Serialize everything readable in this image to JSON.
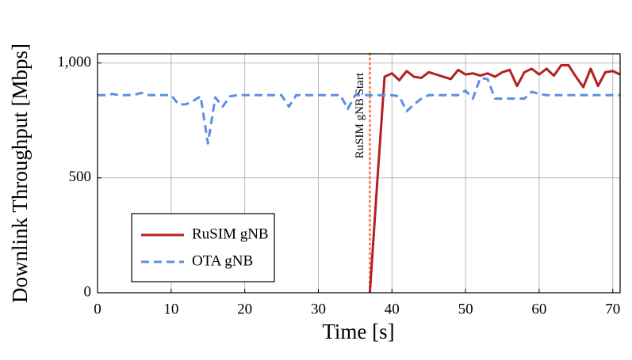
{
  "chart_data": {
    "type": "line",
    "xlabel": "Time [s]",
    "ylabel": "Downlink Throughput [Mbps]",
    "x": [
      0,
      1,
      2,
      3,
      4,
      5,
      6,
      7,
      8,
      9,
      10,
      11,
      12,
      13,
      14,
      15,
      16,
      17,
      18,
      19,
      20,
      21,
      22,
      23,
      24,
      25,
      26,
      27,
      28,
      29,
      30,
      31,
      32,
      33,
      34,
      35,
      36,
      37,
      38,
      39,
      40,
      41,
      42,
      43,
      44,
      45,
      46,
      47,
      48,
      49,
      50,
      51,
      52,
      53,
      54,
      55,
      56,
      57,
      58,
      59,
      60,
      61,
      62,
      63,
      64,
      65,
      66,
      67,
      68,
      69,
      70,
      71
    ],
    "series": [
      {
        "name": "RuSIM gNB",
        "color": "#b22222",
        "dash": "solid",
        "values": [
          null,
          null,
          null,
          null,
          null,
          null,
          null,
          null,
          null,
          null,
          null,
          null,
          null,
          null,
          null,
          null,
          null,
          null,
          null,
          null,
          null,
          null,
          null,
          null,
          null,
          null,
          null,
          null,
          null,
          null,
          null,
          null,
          null,
          null,
          null,
          null,
          null,
          0,
          480,
          940,
          955,
          925,
          965,
          940,
          935,
          960,
          950,
          940,
          930,
          970,
          950,
          955,
          945,
          955,
          940,
          960,
          970,
          900,
          960,
          975,
          950,
          975,
          945,
          990,
          990,
          940,
          895,
          975,
          900,
          960,
          965,
          950
        ]
      },
      {
        "name": "OTA gNB",
        "color": "#5b8fe8",
        "dash": "dashed",
        "values": [
          860,
          860,
          865,
          860,
          860,
          862,
          870,
          860,
          860,
          860,
          860,
          820,
          820,
          835,
          855,
          650,
          850,
          810,
          855,
          860,
          860,
          860,
          860,
          860,
          860,
          860,
          810,
          860,
          860,
          860,
          860,
          860,
          860,
          860,
          800,
          860,
          860,
          860,
          860,
          860,
          860,
          855,
          790,
          820,
          845,
          860,
          860,
          860,
          860,
          860,
          880,
          845,
          935,
          930,
          845,
          845,
          845,
          845,
          845,
          875,
          865,
          860,
          860,
          860,
          860,
          860,
          860,
          860,
          860,
          860,
          860,
          860
        ]
      }
    ],
    "annotations": [
      {
        "text": "RuSIM gNB Start",
        "x": 37,
        "color": "#f4845f"
      }
    ],
    "xlim": [
      0,
      71
    ],
    "ylim": [
      0,
      1040
    ],
    "xticks": [
      0,
      10,
      20,
      30,
      40,
      50,
      60,
      70
    ],
    "yticks": [
      0,
      500,
      {
        "value": 1000,
        "label": "1,000"
      }
    ],
    "grid": true,
    "legend": "lower left"
  }
}
